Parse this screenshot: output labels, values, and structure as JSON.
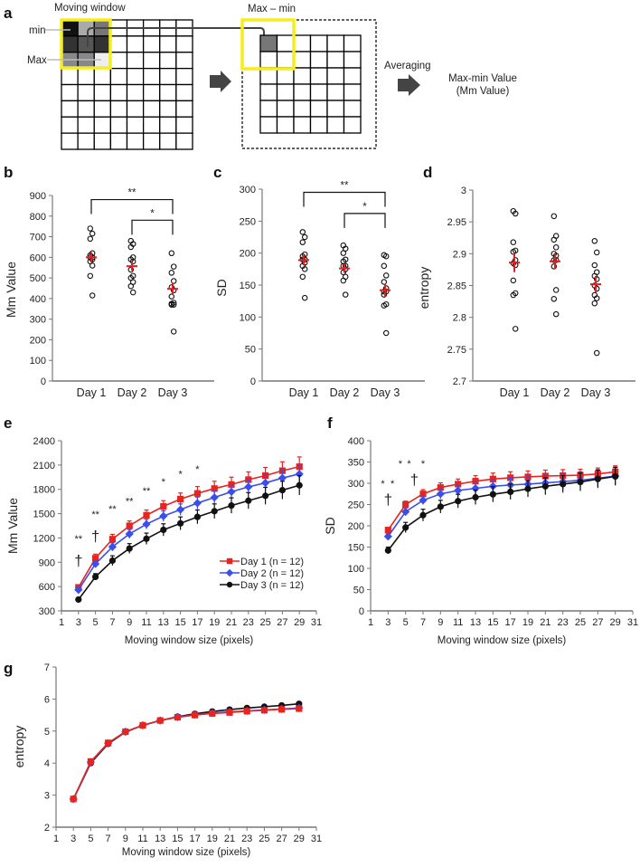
{
  "panel_a": {
    "label": "a",
    "moving_window": "Moving window",
    "min": "min",
    "max": "Max",
    "max_minus_min": "Max – min",
    "averaging": "Averaging",
    "result_line1": "Max-min Value",
    "result_line2": "(Mm Value)",
    "highlight_color": "#f5ee1f"
  },
  "chart_data": [
    {
      "id": "b",
      "label": "b",
      "type": "scatter",
      "ylabel": "Mm Value",
      "ylim": [
        0,
        900
      ],
      "yticks": [
        0,
        100,
        200,
        300,
        400,
        500,
        600,
        700,
        800,
        900
      ],
      "categories": [
        "Day 1",
        "Day 2",
        "Day 3"
      ],
      "points": [
        [
          740,
          715,
          690,
          620,
          610,
          600,
          600,
          590,
          580,
          560,
          510,
          415
        ],
        [
          680,
          665,
          650,
          600,
          590,
          580,
          540,
          510,
          500,
          480,
          460,
          430
        ],
        [
          620,
          555,
          525,
          485,
          455,
          440,
          410,
          380,
          375,
          370,
          370,
          240
        ]
      ],
      "mean": [
        600,
        557,
        447
      ],
      "sem": [
        25,
        22,
        30
      ],
      "mean_color": "#e02020",
      "brackets": [
        {
          "from": 0,
          "to": 2,
          "y": 880,
          "label": "**"
        },
        {
          "from": 1,
          "to": 2,
          "y": 780,
          "label": "*"
        }
      ]
    },
    {
      "id": "c",
      "label": "c",
      "type": "scatter",
      "ylabel": "SD",
      "ylim": [
        0,
        300
      ],
      "yticks": [
        0,
        50,
        100,
        150,
        200,
        250,
        300
      ],
      "categories": [
        "Day 1",
        "Day 2",
        "Day 3"
      ],
      "points": [
        [
          233,
          225,
          217,
          198,
          195,
          190,
          190,
          185,
          180,
          175,
          163,
          130
        ],
        [
          212,
          207,
          200,
          190,
          187,
          180,
          180,
          175,
          170,
          163,
          157,
          135
        ],
        [
          197,
          195,
          180,
          165,
          155,
          145,
          140,
          140,
          135,
          120,
          118,
          75
        ]
      ],
      "mean": [
        189,
        176,
        142
      ],
      "sem": [
        8,
        7,
        10
      ],
      "mean_color": "#e02020",
      "brackets": [
        {
          "from": 0,
          "to": 2,
          "y": 295,
          "label": "**"
        },
        {
          "from": 1,
          "to": 2,
          "y": 262,
          "label": "*"
        }
      ]
    },
    {
      "id": "d",
      "label": "d",
      "type": "scatter",
      "ylabel": "entropy",
      "ylim": [
        2.7,
        3.0
      ],
      "yticks": [
        2.7,
        2.75,
        2.8,
        2.85,
        2.9,
        2.95,
        3
      ],
      "categories": [
        "Day 1",
        "Day 2",
        "Day 3"
      ],
      "points": [
        [
          2.967,
          2.963,
          2.918,
          2.905,
          2.903,
          2.89,
          2.885,
          2.882,
          2.858,
          2.838,
          2.835,
          2.782
        ],
        [
          2.959,
          2.928,
          2.922,
          2.91,
          2.9,
          2.897,
          2.89,
          2.89,
          2.88,
          2.843,
          2.829,
          2.805
        ],
        [
          2.92,
          2.902,
          2.882,
          2.871,
          2.865,
          2.86,
          2.85,
          2.845,
          2.835,
          2.83,
          2.822,
          2.744
        ]
      ],
      "mean": [
        2.886,
        2.888,
        2.852
      ],
      "sem": [
        0.015,
        0.012,
        0.013
      ],
      "mean_color": "#e02020",
      "brackets": []
    },
    {
      "id": "e",
      "label": "e",
      "type": "line",
      "xlabel": "Moving window size  (pixels)",
      "ylabel": "Mm Value",
      "xlim": [
        1,
        31
      ],
      "xticks": [
        1,
        3,
        5,
        7,
        9,
        11,
        13,
        15,
        17,
        19,
        21,
        23,
        25,
        27,
        29,
        31
      ],
      "ylim": [
        300,
        2400
      ],
      "yticks": [
        300,
        600,
        900,
        1200,
        1500,
        1800,
        2100,
        2400
      ],
      "x": [
        3,
        5,
        7,
        9,
        11,
        13,
        15,
        17,
        19,
        21,
        23,
        25,
        27,
        29
      ],
      "legend_position": "bottom-right",
      "series": [
        {
          "name": "Day 1 (n = 12)",
          "color": "#e8241f",
          "marker": "square",
          "values": [
            590,
            950,
            1185,
            1350,
            1480,
            1590,
            1680,
            1750,
            1810,
            1860,
            1920,
            1970,
            2030,
            2080
          ],
          "errors": [
            30,
            50,
            60,
            60,
            65,
            70,
            75,
            85,
            90,
            90,
            95,
            100,
            110,
            120
          ]
        },
        {
          "name": "Day 2 (n = 12)",
          "color": "#3a4fe8",
          "marker": "diamond",
          "values": [
            560,
            880,
            1090,
            1250,
            1370,
            1470,
            1550,
            1630,
            1700,
            1770,
            1830,
            1880,
            1940,
            1990
          ],
          "errors": [
            25,
            40,
            50,
            55,
            60,
            65,
            70,
            75,
            80,
            85,
            90,
            95,
            100,
            110
          ]
        },
        {
          "name": "Day 3 (n = 12)",
          "color": "#111111",
          "marker": "circle",
          "values": [
            440,
            720,
            920,
            1070,
            1190,
            1300,
            1380,
            1460,
            1530,
            1600,
            1660,
            1720,
            1790,
            1850
          ],
          "errors": [
            20,
            40,
            60,
            60,
            70,
            75,
            80,
            85,
            90,
            95,
            100,
            105,
            110,
            120
          ]
        }
      ],
      "annotations": [
        {
          "x": 3,
          "y": 1150,
          "text": "**"
        },
        {
          "x": 3,
          "y": 860,
          "text": "†",
          "big": true
        },
        {
          "x": 5,
          "y": 1450,
          "text": "**"
        },
        {
          "x": 5,
          "y": 1160,
          "text": "†",
          "big": true
        },
        {
          "x": 7,
          "y": 1520,
          "text": "**"
        },
        {
          "x": 9,
          "y": 1610,
          "text": "**"
        },
        {
          "x": 11,
          "y": 1740,
          "text": "**"
        },
        {
          "x": 13,
          "y": 1850,
          "text": "*"
        },
        {
          "x": 15,
          "y": 1950,
          "text": "*"
        },
        {
          "x": 17,
          "y": 2010,
          "text": "*"
        }
      ]
    },
    {
      "id": "f",
      "label": "f",
      "type": "line",
      "xlabel": "Moving window size  (pixels)",
      "ylabel": "SD",
      "xlim": [
        1,
        31
      ],
      "xticks": [
        1,
        3,
        5,
        7,
        9,
        11,
        13,
        15,
        17,
        19,
        21,
        23,
        25,
        27,
        29,
        31
      ],
      "ylim": [
        0,
        400
      ],
      "yticks": [
        0,
        50,
        100,
        150,
        200,
        250,
        300,
        350,
        400
      ],
      "x": [
        3,
        5,
        7,
        9,
        11,
        13,
        15,
        17,
        19,
        21,
        23,
        25,
        27,
        29
      ],
      "series": [
        {
          "color": "#e8241f",
          "marker": "square",
          "values": [
            190,
            250,
            275,
            290,
            298,
            305,
            310,
            313,
            315,
            317,
            318,
            319,
            322,
            327
          ],
          "errors": [
            6,
            8,
            10,
            11,
            12,
            13,
            14,
            14,
            14,
            14,
            14,
            14,
            14,
            14
          ]
        },
        {
          "color": "#3a4fe8",
          "marker": "diamond",
          "values": [
            175,
            233,
            260,
            275,
            283,
            288,
            293,
            296,
            298,
            301,
            304,
            307,
            312,
            317
          ],
          "errors": [
            6,
            9,
            10,
            12,
            13,
            14,
            15,
            16,
            17,
            18,
            19,
            20,
            20,
            21
          ]
        },
        {
          "color": "#111111",
          "marker": "circle",
          "values": [
            142,
            196,
            225,
            245,
            258,
            267,
            274,
            280,
            287,
            293,
            298,
            303,
            310,
            316
          ],
          "errors": [
            8,
            12,
            14,
            15,
            16,
            17,
            18,
            18,
            19,
            20,
            20,
            21,
            21,
            21
          ]
        }
      ],
      "annotations": [
        {
          "x": 2.4,
          "y": 292,
          "text": "*"
        },
        {
          "x": 3.5,
          "y": 292,
          "text": "*"
        },
        {
          "x": 3,
          "y": 250,
          "text": "†",
          "big": true
        },
        {
          "x": 4.4,
          "y": 338,
          "text": "*"
        },
        {
          "x": 5.4,
          "y": 338,
          "text": "*"
        },
        {
          "x": 6,
          "y": 297,
          "text": "†",
          "big": true
        },
        {
          "x": 7,
          "y": 338,
          "text": "*"
        }
      ]
    },
    {
      "id": "g",
      "label": "g",
      "type": "line",
      "xlabel": "Moving window size  (pixels)",
      "ylabel": "entropy",
      "xlim": [
        1,
        31
      ],
      "xticks": [
        1,
        3,
        5,
        7,
        9,
        11,
        13,
        15,
        17,
        19,
        21,
        23,
        25,
        27,
        29,
        31
      ],
      "ylim": [
        2,
        7
      ],
      "yticks": [
        2,
        3,
        4,
        5,
        6,
        7
      ],
      "x": [
        3,
        5,
        7,
        9,
        11,
        13,
        15,
        17,
        19,
        21,
        23,
        25,
        27,
        29
      ],
      "series": [
        {
          "color": "#111111",
          "marker": "circle",
          "values": [
            2.87,
            4.0,
            4.6,
            4.97,
            5.18,
            5.33,
            5.45,
            5.54,
            5.61,
            5.67,
            5.72,
            5.76,
            5.8,
            5.85
          ]
        },
        {
          "color": "#3a4fe8",
          "marker": "diamond",
          "values": [
            2.88,
            4.03,
            4.62,
            4.98,
            5.18,
            5.33,
            5.44,
            5.51,
            5.56,
            5.6,
            5.63,
            5.66,
            5.69,
            5.72
          ]
        },
        {
          "color": "#e8241f",
          "marker": "square",
          "values": [
            2.88,
            4.05,
            4.63,
            4.98,
            5.18,
            5.33,
            5.43,
            5.5,
            5.55,
            5.58,
            5.62,
            5.65,
            5.68,
            5.7
          ]
        }
      ],
      "annotations": []
    }
  ]
}
